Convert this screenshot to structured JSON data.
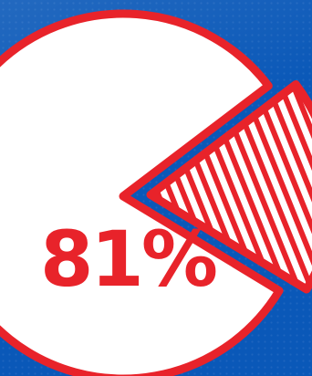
{
  "colors": {
    "background": "#0a58b8",
    "slice_fill": "#ffffff",
    "outline": "#e8232a",
    "hatch": "#e8232a",
    "label": "#e8232a"
  },
  "chart_data": {
    "type": "pie",
    "categories": [
      "",
      ""
    ],
    "values": [
      81,
      19
    ],
    "data_labels": [
      "81%",
      ""
    ],
    "styles": [
      "solid",
      "hatched"
    ],
    "exploded": [
      false,
      true
    ],
    "title": "",
    "legend": "none"
  }
}
